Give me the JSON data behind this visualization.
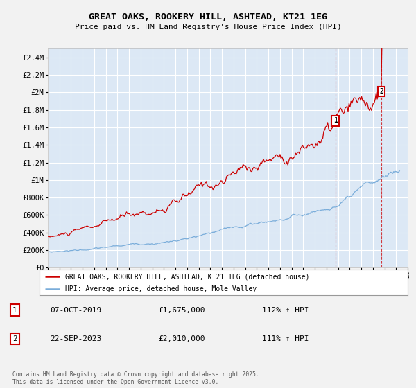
{
  "title": "GREAT OAKS, ROOKERY HILL, ASHTEAD, KT21 1EG",
  "subtitle": "Price paid vs. HM Land Registry's House Price Index (HPI)",
  "background_color": "#f2f2f2",
  "plot_bg_color": "#dce8f5",
  "grid_color": "#ffffff",
  "red_line_color": "#cc0000",
  "blue_line_color": "#7aadda",
  "marker1_year": 2019.77,
  "marker1_value": 1675000,
  "marker2_year": 2023.73,
  "marker2_value": 2010000,
  "marker1_label": "1",
  "marker2_label": "2",
  "marker1_date": "07-OCT-2019",
  "marker1_price": "£1,675,000",
  "marker1_hpi": "112% ↑ HPI",
  "marker2_date": "22-SEP-2023",
  "marker2_price": "£2,010,000",
  "marker2_hpi": "111% ↑ HPI",
  "legend_line1": "GREAT OAKS, ROOKERY HILL, ASHTEAD, KT21 1EG (detached house)",
  "legend_line2": "HPI: Average price, detached house, Mole Valley",
  "footnote": "Contains HM Land Registry data © Crown copyright and database right 2025.\nThis data is licensed under the Open Government Licence v3.0.",
  "xmin": 1995,
  "xmax": 2026,
  "ymin": 0,
  "ymax": 2500000
}
